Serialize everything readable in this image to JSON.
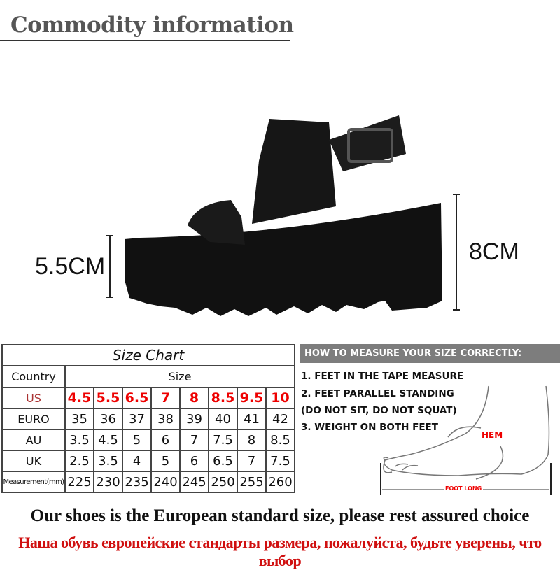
{
  "header": {
    "title": "Commodity information"
  },
  "product": {
    "heel_height": "5.5CM",
    "total_height": "8CM"
  },
  "size_chart": {
    "title": "Size Chart",
    "country_header": "Country",
    "size_header": "Size",
    "rows": [
      {
        "label": "US",
        "values": [
          "4.5",
          "5.5",
          "6.5",
          "7",
          "8",
          "8.5",
          "9.5",
          "10"
        ]
      },
      {
        "label": "EURO",
        "values": [
          "35",
          "36",
          "37",
          "38",
          "39",
          "40",
          "41",
          "42"
        ]
      },
      {
        "label": "AU",
        "values": [
          "3.5",
          "4.5",
          "5",
          "6",
          "7",
          "7.5",
          "8",
          "8.5"
        ]
      },
      {
        "label": "UK",
        "values": [
          "2.5",
          "3.5",
          "4",
          "5",
          "6",
          "6.5",
          "7",
          "7.5"
        ]
      },
      {
        "label": "Measurement(mm)",
        "values": [
          "225",
          "230",
          "235",
          "240",
          "245",
          "250",
          "255",
          "260"
        ]
      }
    ],
    "highlight_color": "#e00000"
  },
  "measure": {
    "heading": "HOW TO MEASURE YOUR SIZE CORRECTLY:",
    "steps": [
      "1. FEET IN THE TAPE MEASURE",
      "2. FEET PARALLEL STANDING",
      "(DO NOT SIT, DO NOT SQUAT)",
      "3. WEIGHT ON BOTH FEET"
    ],
    "hem_label": "HEM",
    "foot_long_label": "FOOT LONG"
  },
  "footer": {
    "english": "Our shoes is the European standard size, please rest assured choice",
    "russian": "Наша обувь европейские стандарты размера, пожалуйста, будьте уверены, что выбор"
  }
}
